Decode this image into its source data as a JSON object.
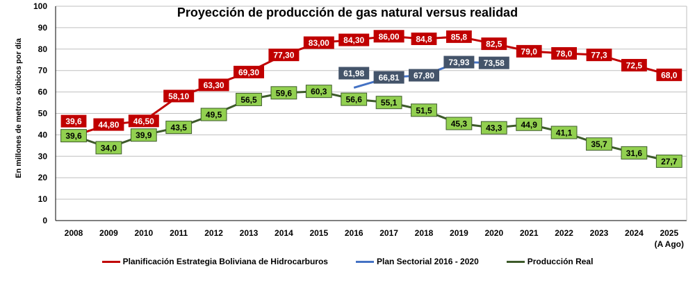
{
  "chart_data": {
    "type": "line",
    "title": "Proyección de producción de gas natural versus realidad",
    "ylabel": "En millones de metros cúbicos por día",
    "xlabel": "",
    "ylim": [
      0,
      100
    ],
    "yticks": [
      "0",
      "10",
      "20",
      "30",
      "40",
      "50",
      "60",
      "70",
      "80",
      "90",
      "100"
    ],
    "categories": [
      "2008",
      "2009",
      "2010",
      "2011",
      "2012",
      "2013",
      "2014",
      "2015",
      "2016",
      "2017",
      "2018",
      "2019",
      "2020",
      "2021",
      "2022",
      "2023",
      "2024",
      "2025"
    ],
    "category_note": "(A Ago)",
    "grid": true,
    "legend_position": "bottom",
    "series": [
      {
        "name": "Planificación Estrategia Boliviana de Hidrocarburos",
        "line_color": "#c00000",
        "box_color": "#c00000",
        "text_color": "#ffffff",
        "values": [
          39.6,
          44.8,
          46.5,
          58.1,
          63.3,
          69.3,
          77.3,
          83.0,
          84.3,
          86.0,
          84.8,
          85.8,
          82.5,
          79.0,
          78.0,
          77.3,
          72.5,
          68.0
        ],
        "labels": [
          "39,6",
          "44,80",
          "46,50",
          "58,10",
          "63,30",
          "69,30",
          "77,30",
          "83,00",
          "84,30",
          "86,00",
          "84,8",
          "85,8",
          "82,5",
          "79,0",
          "78,0",
          "77,3",
          "72,5",
          "68,0"
        ]
      },
      {
        "name": "Plan Sectorial 2016 - 2020",
        "line_color": "#4472c4",
        "box_color": "#44546a",
        "text_color": "#ffffff",
        "values": [
          null,
          null,
          null,
          null,
          null,
          null,
          null,
          null,
          61.98,
          66.81,
          67.8,
          73.93,
          73.58,
          null,
          null,
          null,
          null,
          null
        ],
        "labels": [
          null,
          null,
          null,
          null,
          null,
          null,
          null,
          null,
          "61,98",
          "66,81",
          "67,80",
          "73,93",
          "73,58",
          null,
          null,
          null,
          null,
          null
        ]
      },
      {
        "name": "Producción Real",
        "line_color": "#3d5a2a",
        "box_color": "#92d050",
        "text_color": "#000000",
        "values": [
          39.6,
          34.0,
          39.9,
          43.5,
          49.5,
          56.5,
          59.6,
          60.3,
          56.6,
          55.1,
          51.5,
          45.3,
          43.3,
          44.9,
          41.1,
          35.7,
          31.6,
          27.7
        ],
        "labels": [
          "39,6",
          "34,0",
          "39,9",
          "43,5",
          "49,5",
          "56,5",
          "59,6",
          "60,3",
          "56,6",
          "55,1",
          "51,5",
          "45,3",
          "43,3",
          "44,9",
          "41,1",
          "35,7",
          "31,6",
          "27,7"
        ]
      }
    ]
  }
}
